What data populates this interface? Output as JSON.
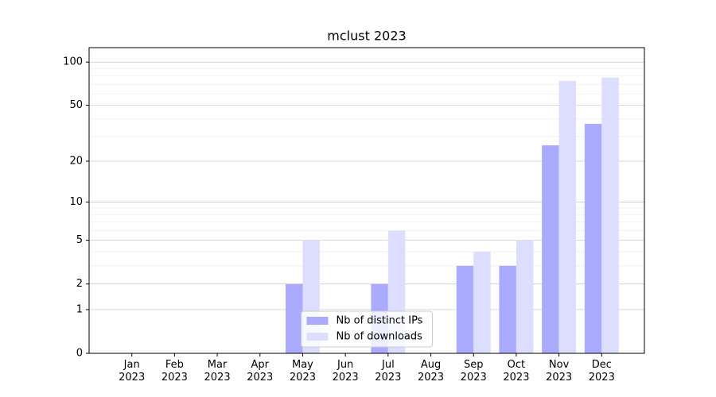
{
  "chart_data": {
    "type": "bar",
    "title": "mclust 2023",
    "categories": [
      "Jan 2023",
      "Feb 2023",
      "Mar 2023",
      "Apr 2023",
      "May 2023",
      "Jun 2023",
      "Jul 2023",
      "Aug 2023",
      "Sep 2023",
      "Oct 2023",
      "Nov 2023",
      "Dec 2023"
    ],
    "series": [
      {
        "name": "Nb of distinct IPs",
        "color": "#aaaaff",
        "values": [
          0,
          0,
          0,
          0,
          2,
          0,
          2,
          0,
          3,
          3,
          26,
          37
        ]
      },
      {
        "name": "Nb of downloads",
        "color": "#ddddff",
        "values": [
          0,
          0,
          0,
          0,
          5,
          0,
          6,
          0,
          4,
          5,
          74,
          78
        ]
      }
    ],
    "yscale": "log1p",
    "ylim": [
      0,
      126
    ],
    "yticks": [
      0,
      1,
      2,
      5,
      10,
      20,
      50,
      100
    ],
    "minor_yticks": [
      3,
      4,
      6,
      7,
      8,
      9,
      30,
      40,
      60,
      70,
      80,
      90
    ],
    "grid": true,
    "legend": "lower center"
  }
}
